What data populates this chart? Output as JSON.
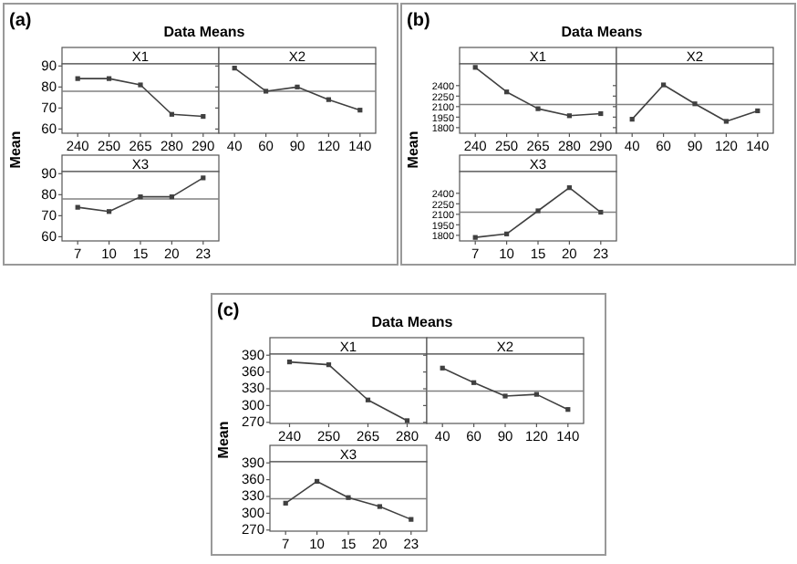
{
  "chart_data": [
    {
      "type": "line",
      "title": "X1",
      "ylabel": "Mean",
      "annotations": [
        "(a)",
        "Data Means"
      ],
      "categories": [
        "240",
        "250",
        "265",
        "280",
        "290"
      ],
      "values": [
        84,
        84,
        81,
        67,
        66
      ],
      "color": "#404040",
      "marker": "square",
      "ylim": [
        58,
        91
      ],
      "yticks": [
        60,
        70,
        80,
        90
      ],
      "ref_lines": [
        {
          "axis": "y",
          "value": 78,
          "color": "#808080"
        }
      ]
    },
    {
      "type": "line",
      "title": "X2",
      "categories": [
        "40",
        "60",
        "90",
        "120",
        "140"
      ],
      "values": [
        89,
        78,
        80,
        74,
        69
      ],
      "color": "#404040",
      "marker": "square",
      "ylim": [
        58,
        91
      ],
      "yticks": [
        60,
        70,
        80,
        90
      ],
      "tick_labels": "x",
      "ref_lines": [
        {
          "axis": "y",
          "value": 78,
          "color": "#808080"
        }
      ]
    },
    {
      "type": "line",
      "title": "X3",
      "categories": [
        "7",
        "10",
        "15",
        "20",
        "23"
      ],
      "values": [
        74,
        72,
        79,
        79,
        88
      ],
      "color": "#404040",
      "marker": "square",
      "ylim": [
        58,
        91
      ],
      "yticks": [
        60,
        70,
        80,
        90
      ],
      "ref_lines": [
        {
          "axis": "y",
          "value": 78,
          "color": "#808080"
        }
      ]
    },
    {
      "type": "line",
      "title": "X1",
      "ylabel": "Mean",
      "annotations": [
        "(b)",
        "Data Means"
      ],
      "categories": [
        "240",
        "250",
        "265",
        "280",
        "290"
      ],
      "values": [
        2660,
        2310,
        2070,
        1970,
        2000
      ],
      "color": "#404040",
      "marker": "square",
      "ylim": [
        1720,
        2710
      ],
      "yticks": [
        1800,
        1950,
        2100,
        2250,
        2400
      ],
      "ref_lines": [
        {
          "axis": "y",
          "value": 2130,
          "color": "#808080"
        }
      ]
    },
    {
      "type": "line",
      "title": "X2",
      "categories": [
        "40",
        "60",
        "90",
        "120",
        "140"
      ],
      "values": [
        1920,
        2410,
        2140,
        1890,
        2040
      ],
      "color": "#404040",
      "marker": "square",
      "ylim": [
        1720,
        2710
      ],
      "yticks": [
        1800,
        1950,
        2100,
        2250,
        2400
      ],
      "tick_labels": "x",
      "ref_lines": [
        {
          "axis": "y",
          "value": 2130,
          "color": "#808080"
        }
      ]
    },
    {
      "type": "line",
      "title": "X3",
      "categories": [
        "7",
        "10",
        "15",
        "20",
        "23"
      ],
      "values": [
        1770,
        1820,
        2150,
        2480,
        2130
      ],
      "color": "#404040",
      "marker": "square",
      "ylim": [
        1720,
        2710
      ],
      "yticks": [
        1800,
        1950,
        2100,
        2250,
        2400
      ],
      "ref_lines": [
        {
          "axis": "y",
          "value": 2130,
          "color": "#808080"
        }
      ]
    },
    {
      "type": "line",
      "title": "X1",
      "ylabel": "Mean",
      "annotations": [
        "(c)",
        "Data Means"
      ],
      "categories": [
        "240",
        "250",
        "265",
        "280"
      ],
      "values": [
        378,
        373,
        310,
        273
      ],
      "color": "#404040",
      "marker": "square",
      "ylim": [
        268,
        392
      ],
      "yticks": [
        270,
        300,
        330,
        360,
        390
      ],
      "ref_lines": [
        {
          "axis": "y",
          "value": 326,
          "color": "#808080"
        }
      ]
    },
    {
      "type": "line",
      "title": "X2",
      "categories": [
        "40",
        "60",
        "90",
        "120",
        "140"
      ],
      "values": [
        367,
        341,
        317,
        320,
        293
      ],
      "color": "#404040",
      "marker": "square",
      "ylim": [
        268,
        392
      ],
      "yticks": [
        270,
        300,
        330,
        360,
        390
      ],
      "tick_labels": "x",
      "ref_lines": [
        {
          "axis": "y",
          "value": 326,
          "color": "#808080"
        }
      ]
    },
    {
      "type": "line",
      "title": "X3",
      "categories": [
        "7",
        "10",
        "15",
        "20",
        "23"
      ],
      "values": [
        318,
        357,
        328,
        312,
        289
      ],
      "color": "#404040",
      "marker": "square",
      "ylim": [
        268,
        392
      ],
      "yticks": [
        270,
        300,
        330,
        360,
        390
      ],
      "ref_lines": [
        {
          "axis": "y",
          "value": 326,
          "color": "#808080"
        }
      ]
    }
  ]
}
